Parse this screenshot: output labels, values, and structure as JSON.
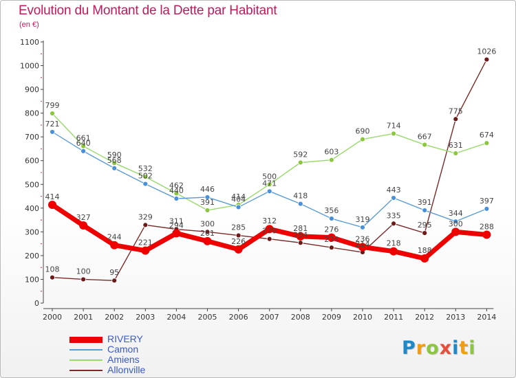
{
  "title": "Evolution du Montant de la Dette par Habitant",
  "subtitle": "(en €)",
  "logo": {
    "letters": [
      "P",
      "r",
      "o",
      "x",
      "i",
      "t",
      "i"
    ],
    "colors": [
      "#1e88c8",
      "#f39c12",
      "#8cc63f",
      "#e74c3c",
      "#1e88c8",
      "#f39c12",
      "#8cc63f"
    ]
  },
  "chart_data": {
    "type": "line",
    "x": [
      "2000",
      "2001",
      "2002",
      "2003",
      "2004",
      "2005",
      "2006",
      "2007",
      "2008",
      "2009",
      "2010",
      "2011",
      "2012",
      "2013",
      "2014"
    ],
    "ylim": [
      0,
      1100
    ],
    "yticks": [
      "0",
      "100",
      "200",
      "300",
      "400",
      "500",
      "600",
      "700",
      "800",
      "900",
      "1000",
      "1100"
    ],
    "legend_position": "bottom-left",
    "grid": false,
    "series": [
      {
        "name": "RIVERY",
        "color": "#ee0000",
        "marker": "#ee0000",
        "width": 7,
        "msize": 6,
        "values": [
          414,
          327,
          244,
          221,
          294,
          261,
          226,
          312,
          281,
          276,
          236,
          218,
          188,
          300,
          288
        ]
      },
      {
        "name": "Camon",
        "color": "#5b9bd5",
        "marker": "#4a90d9",
        "width": 1.4,
        "msize": 3.5,
        "values": [
          721,
          640,
          568,
          502,
          440,
          446,
          404,
          471,
          418,
          356,
          319,
          443,
          391,
          344,
          397
        ]
      },
      {
        "name": "Amiens",
        "color": "#98d96b",
        "marker": "#8cc63f",
        "width": 1.4,
        "msize": 3.5,
        "values": [
          799,
          661,
          590,
          532,
          462,
          391,
          414,
          500,
          592,
          603,
          690,
          714,
          667,
          631,
          674
        ]
      },
      {
        "name": "Allonville",
        "color": "#7b2a2a",
        "marker": "#6b1a1a",
        "width": 1.4,
        "msize": 3.5,
        "values": [
          108,
          100,
          95,
          329,
          311,
          300,
          285,
          270,
          254,
          234,
          214,
          335,
          295,
          775,
          1026
        ]
      }
    ]
  }
}
